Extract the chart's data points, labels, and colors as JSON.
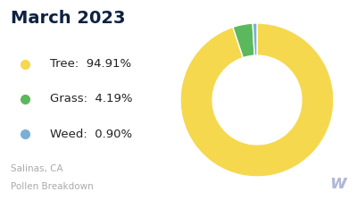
{
  "title": "March 2023",
  "title_color": "#0d2240",
  "subtitle_line1": "Salinas, CA",
  "subtitle_line2": "Pollen Breakdown",
  "subtitle_color": "#aaaaaa",
  "categories": [
    "Tree",
    "Grass",
    "Weed"
  ],
  "values": [
    94.91,
    4.19,
    0.9
  ],
  "labels": [
    "94.91%",
    "4.19%",
    "0.90%"
  ],
  "colors": [
    "#f5d84e",
    "#5cb85c",
    "#7bafd4"
  ],
  "background_color": "#ffffff",
  "legend_text_color": "#222222",
  "donut_width": 0.42,
  "startangle": 90,
  "watermark_color": "#b0b8d8"
}
